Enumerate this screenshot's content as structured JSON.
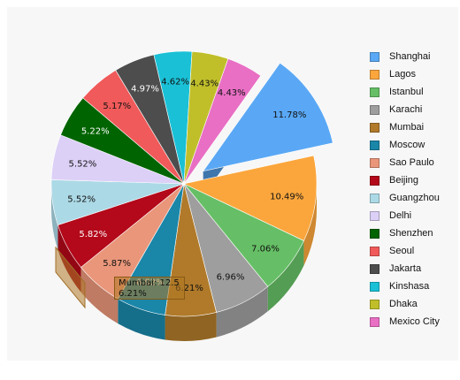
{
  "chart_data": {
    "type": "pie",
    "title": "",
    "legend_position": "right",
    "exploded_slice": "Shanghai",
    "tooltip": {
      "line1": "Mumbai: 12.5",
      "line2": "6.21%"
    },
    "slices": [
      {
        "name": "Shanghai",
        "percent": 11.78,
        "label": "11.78%",
        "color": "#5aa8f5"
      },
      {
        "name": "Lagos",
        "percent": 10.49,
        "label": "10.49%",
        "color": "#fba63c"
      },
      {
        "name": "Istanbul",
        "percent": 7.06,
        "label": "7.06%",
        "color": "#66bf66"
      },
      {
        "name": "Karachi",
        "percent": 6.96,
        "label": "6.96%",
        "color": "#9e9e9e"
      },
      {
        "name": "Mumbai",
        "percent": 6.21,
        "label": "6.21%",
        "color": "#b07a2a"
      },
      {
        "name": "Moscow",
        "percent": 6.02,
        "label": "6.02%",
        "color": "#1a86a8"
      },
      {
        "name": "Sao Paulo",
        "percent": 5.87,
        "label": "5.87%",
        "color": "#e9967a"
      },
      {
        "name": "Beijing",
        "percent": 5.82,
        "label": "5.82%",
        "color": "#b3091a"
      },
      {
        "name": "Guangzhou",
        "percent": 5.52,
        "label": "5.52%",
        "color": "#acd9e6"
      },
      {
        "name": "Delhi",
        "percent": 5.52,
        "label": "5.52%",
        "color": "#dcd0f7"
      },
      {
        "name": "Shenzhen",
        "percent": 5.22,
        "label": "5.22%",
        "color": "#006400"
      },
      {
        "name": "Seoul",
        "percent": 5.17,
        "label": "5.17%",
        "color": "#f05a5a"
      },
      {
        "name": "Jakarta",
        "percent": 4.97,
        "label": "4.97%",
        "color": "#4d4d4d"
      },
      {
        "name": "Kinshasa",
        "percent": 4.62,
        "label": "4.62%",
        "color": "#1ac0d6"
      },
      {
        "name": "Dhaka",
        "percent": 4.43,
        "label": "4.43%",
        "color": "#c0bf2a"
      },
      {
        "name": "Mexico City",
        "percent": 4.43,
        "label": "4.43%",
        "color": "#e86fc4"
      }
    ]
  }
}
